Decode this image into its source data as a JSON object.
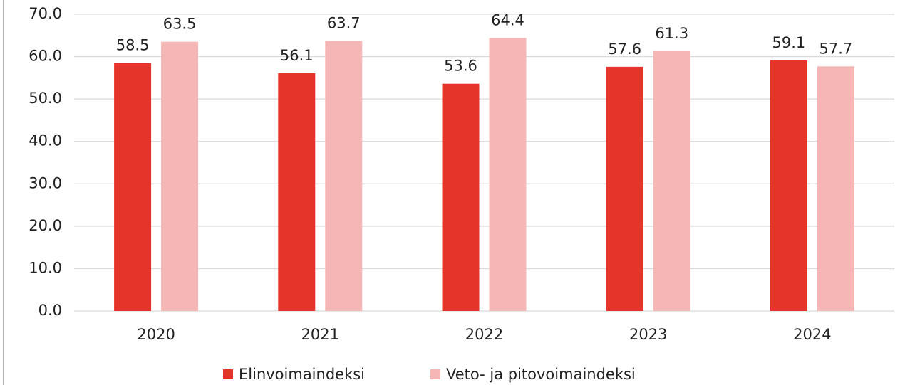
{
  "chart_data": {
    "type": "bar",
    "categories": [
      "2020",
      "2021",
      "2022",
      "2023",
      "2024"
    ],
    "series": [
      {
        "name": "Elinvoimaindeksi",
        "color": "#e5342a",
        "values": [
          58.5,
          56.1,
          53.6,
          57.6,
          59.1
        ]
      },
      {
        "name": "Veto- ja pitovoimaindeksi",
        "color": "#f5b7b5",
        "values": [
          63.5,
          63.7,
          64.4,
          61.3,
          57.7
        ]
      }
    ],
    "ylim": [
      0,
      70
    ],
    "yticks": [
      {
        "value": 0,
        "label": "0.0"
      },
      {
        "value": 10,
        "label": "10.0"
      },
      {
        "value": 20,
        "label": "20.0"
      },
      {
        "value": 30,
        "label": "30.0"
      },
      {
        "value": 40,
        "label": "40.0"
      },
      {
        "value": 50,
        "label": "50.0"
      },
      {
        "value": 60,
        "label": "60.0"
      },
      {
        "value": 70,
        "label": "70.0"
      }
    ],
    "grid": true,
    "legend": "bottom"
  }
}
